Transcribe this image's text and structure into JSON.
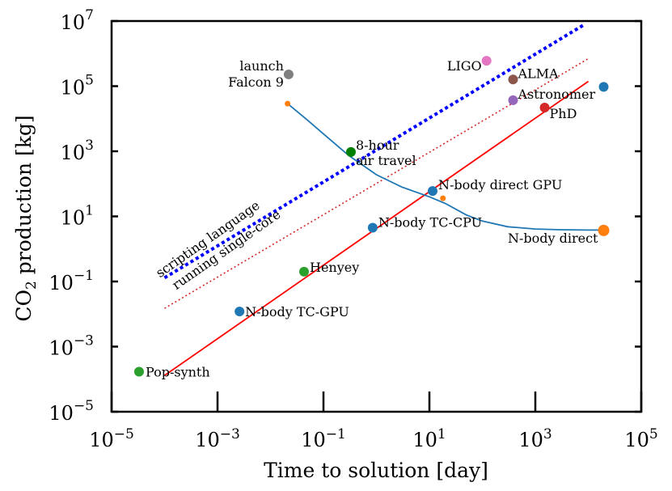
{
  "chart_data": {
    "type": "scatter",
    "title": "",
    "xlabel": "Time to solution [day]",
    "ylabel_main": "CO",
    "ylabel_sub": "2",
    "ylabel_rest": " production [kg]",
    "xscale": "log",
    "yscale": "log",
    "xlim": [
      1e-05,
      100000
    ],
    "ylim": [
      1e-05,
      10000000
    ],
    "grid": false,
    "x_ticks": [
      {
        "base": "10",
        "exp": "−5",
        "value": 1e-05
      },
      {
        "base": "10",
        "exp": "−3",
        "value": 0.001
      },
      {
        "base": "10",
        "exp": "−1",
        "value": 0.1
      },
      {
        "base": "10",
        "exp": "1",
        "value": 10
      },
      {
        "base": "10",
        "exp": "3",
        "value": 1000
      },
      {
        "base": "10",
        "exp": "5",
        "value": 100000
      }
    ],
    "y_ticks": [
      {
        "base": "10",
        "exp": "−5",
        "value": 1e-05
      },
      {
        "base": "10",
        "exp": "−3",
        "value": 0.001
      },
      {
        "base": "10",
        "exp": "−1",
        "value": 0.1
      },
      {
        "base": "10",
        "exp": "1",
        "value": 10
      },
      {
        "base": "10",
        "exp": "3",
        "value": 1000
      },
      {
        "base": "10",
        "exp": "5",
        "value": 100000
      },
      {
        "base": "10",
        "exp": "7",
        "value": 10000000
      }
    ],
    "points": [
      {
        "label": "Pop-synth",
        "x": 3.3e-05,
        "y": 0.00017,
        "color": "#2ca02c"
      },
      {
        "label": "N-body TC-GPU",
        "x": 0.0026,
        "y": 0.012,
        "color": "#1f77b4"
      },
      {
        "label": "Henyey",
        "x": 0.043,
        "y": 0.2,
        "color": "#2ca02c"
      },
      {
        "label": "N-body TC-CPU",
        "x": 0.85,
        "y": 4.5,
        "color": "#1f77b4"
      },
      {
        "label": "N-body direct GPU",
        "x": 11.5,
        "y": 60,
        "color": "#1f77b4"
      },
      {
        "label": "N-body direct",
        "x": 19500,
        "y": 3.7,
        "color": "#ff7f0e"
      },
      {
        "label": "",
        "x": 19500,
        "y": 95000,
        "color": "#1f77b4"
      },
      {
        "label": "PhD",
        "x": 1500,
        "y": 22000,
        "color": "#d62728"
      },
      {
        "label": "Astronomer",
        "x": 380,
        "y": 37000,
        "color": "#9467bd"
      },
      {
        "label": "ALMA",
        "x": 380,
        "y": 160000,
        "color": "#8c564b"
      },
      {
        "label": "LIGO",
        "x": 120,
        "y": 600000,
        "color": "#e377c2"
      },
      {
        "label": "8-hour",
        "label2": "air travel",
        "x": 0.33,
        "y": 950,
        "color": "#008000"
      },
      {
        "label": "launch",
        "label2": "Falcon 9",
        "x": 0.022,
        "y": 230000,
        "color": "#7f7f7f"
      }
    ],
    "lines": [
      {
        "name": "scripting language",
        "style": "dotted-thick",
        "color": "#0000ff",
        "x": [
          0.0001,
          8000
        ],
        "y": [
          0.13,
          7400000
        ]
      },
      {
        "name": "running single-core",
        "style": "dotted",
        "color": "#d62728",
        "x": [
          0.0001,
          10000
        ],
        "y": [
          0.015,
          700000
        ]
      },
      {
        "name": "",
        "style": "solid",
        "color": "#ff0000",
        "x": [
          0.0001,
          10000
        ],
        "y": [
          0.00013,
          140000
        ]
      }
    ],
    "fit_curve": {
      "color": "#1f77b4",
      "x": [
        0.021,
        0.05,
        0.1,
        0.3,
        1,
        3,
        10,
        20,
        50,
        100,
        300,
        1000,
        3000,
        10000,
        19500
      ],
      "y": [
        29000,
        9000,
        3400,
        740,
        190,
        80,
        40,
        25,
        11,
        7.2,
        4.8,
        4.1,
        3.9,
        3.8,
        3.8
      ]
    },
    "small_markers": [
      {
        "x": 0.021,
        "y": 29000,
        "color": "#ff7f0e"
      },
      {
        "x": 18,
        "y": 36,
        "color": "#ff7f0e"
      }
    ],
    "rotated_labels": [
      "scripting language",
      "running single-core"
    ]
  }
}
